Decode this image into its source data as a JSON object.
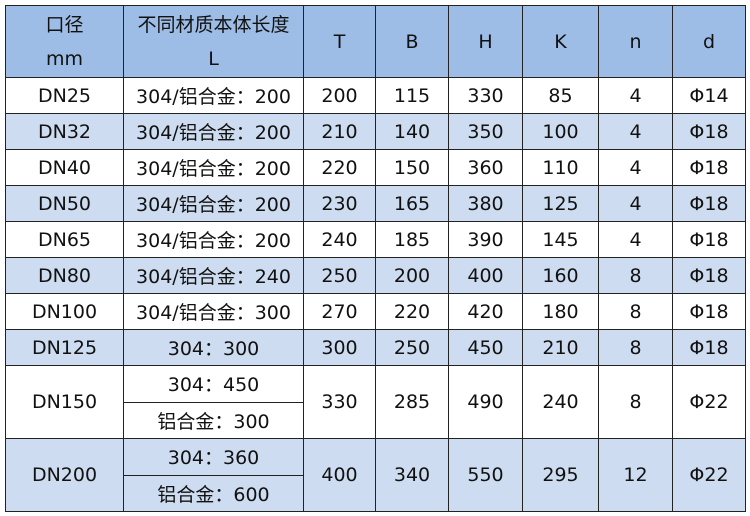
{
  "colors": {
    "header_bg": "#9dbde6",
    "alt_row_bg": "#cddcf0",
    "border": "#222222"
  },
  "headers": [
    {
      "line1": "口径",
      "line2": "mm"
    },
    {
      "line1": "不同材质本体长度",
      "line2": "L"
    },
    {
      "line1": "T"
    },
    {
      "line1": "B"
    },
    {
      "line1": "H"
    },
    {
      "line1": "K"
    },
    {
      "line1": "n"
    },
    {
      "line1": "d"
    }
  ],
  "rows": [
    {
      "dn": "DN25",
      "L": [
        "304/铝合金：200"
      ],
      "T": "200",
      "B": "115",
      "H": "330",
      "K": "85",
      "n": "4",
      "d": "Φ14"
    },
    {
      "dn": "DN32",
      "L": [
        "304/铝合金：200"
      ],
      "T": "210",
      "B": "140",
      "H": "350",
      "K": "100",
      "n": "4",
      "d": "Φ18"
    },
    {
      "dn": "DN40",
      "L": [
        "304/铝合金：200"
      ],
      "T": "220",
      "B": "150",
      "H": "360",
      "K": "110",
      "n": "4",
      "d": "Φ18"
    },
    {
      "dn": "DN50",
      "L": [
        "304/铝合金：200"
      ],
      "T": "230",
      "B": "165",
      "H": "380",
      "K": "125",
      "n": "4",
      "d": "Φ18"
    },
    {
      "dn": "DN65",
      "L": [
        "304/铝合金：200"
      ],
      "T": "240",
      "B": "185",
      "H": "390",
      "K": "145",
      "n": "4",
      "d": "Φ18"
    },
    {
      "dn": "DN80",
      "L": [
        "304/铝合金：240"
      ],
      "T": "250",
      "B": "200",
      "H": "400",
      "K": "160",
      "n": "8",
      "d": "Φ18"
    },
    {
      "dn": "DN100",
      "L": [
        "304/铝合金：300"
      ],
      "T": "270",
      "B": "220",
      "H": "420",
      "K": "180",
      "n": "8",
      "d": "Φ18"
    },
    {
      "dn": "DN125",
      "L": [
        "304：300"
      ],
      "T": "300",
      "B": "250",
      "H": "450",
      "K": "210",
      "n": "8",
      "d": "Φ18"
    },
    {
      "dn": "DN150",
      "L": [
        "304：450",
        "铝合金：300"
      ],
      "T": "330",
      "B": "285",
      "H": "490",
      "K": "240",
      "n": "8",
      "d": "Φ22"
    },
    {
      "dn": "DN200",
      "L": [
        "304：360",
        "铝合金：600"
      ],
      "T": "400",
      "B": "340",
      "H": "550",
      "K": "295",
      "n": "12",
      "d": "Φ22"
    }
  ]
}
